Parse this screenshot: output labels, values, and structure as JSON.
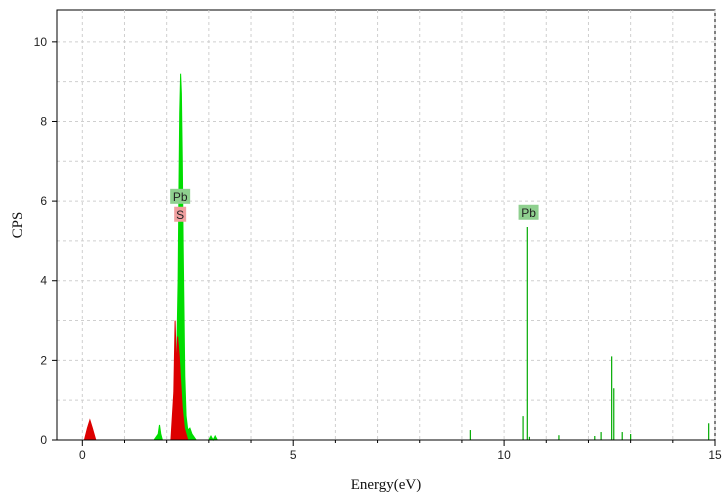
{
  "chart_data": {
    "type": "area",
    "title": "",
    "xlabel": "Energy(eV)",
    "ylabel": "CPS",
    "xlim": [
      -0.6,
      15
    ],
    "ylim": [
      0,
      10.8
    ],
    "x_ticks": [
      0,
      5,
      10,
      15
    ],
    "y_ticks": [
      0,
      2,
      4,
      6,
      8,
      10
    ],
    "x_tick_labels": [
      "0",
      "5",
      "10",
      "15"
    ],
    "y_tick_labels": [
      "0",
      "2",
      "4",
      "6",
      "8",
      "10"
    ],
    "grid": true,
    "series": [
      {
        "color": "#00dd00",
        "points": [
          [
            1.7,
            0
          ],
          [
            1.8,
            0.15
          ],
          [
            1.83,
            0.38
          ],
          [
            1.86,
            0.15
          ],
          [
            1.9,
            0
          ],
          [
            2.15,
            0
          ],
          [
            2.2,
            0.6
          ],
          [
            2.24,
            2.2
          ],
          [
            2.27,
            4.0
          ],
          [
            2.29,
            6.2
          ],
          [
            2.31,
            8.2
          ],
          [
            2.33,
            9.2
          ],
          [
            2.35,
            8.7
          ],
          [
            2.37,
            7.0
          ],
          [
            2.39,
            5.0
          ],
          [
            2.41,
            3.2
          ],
          [
            2.43,
            1.6
          ],
          [
            2.46,
            0.6
          ],
          [
            2.5,
            0.25
          ],
          [
            2.55,
            0.3
          ],
          [
            2.6,
            0.15
          ],
          [
            2.7,
            0
          ],
          [
            3.0,
            0
          ],
          [
            3.05,
            0.1
          ],
          [
            3.1,
            0
          ],
          [
            3.15,
            0.1
          ],
          [
            3.2,
            0
          ]
        ]
      },
      {
        "color": "#dd0000",
        "points": [
          [
            0.05,
            0
          ],
          [
            0.12,
            0.3
          ],
          [
            0.18,
            0.5
          ],
          [
            0.24,
            0.3
          ],
          [
            0.32,
            0
          ],
          [
            2.1,
            0
          ],
          [
            2.17,
            1.2
          ],
          [
            2.2,
            3.0
          ],
          [
            2.23,
            1.8
          ],
          [
            2.26,
            2.6
          ],
          [
            2.3,
            2.1
          ],
          [
            2.33,
            1.5
          ],
          [
            2.37,
            0.8
          ],
          [
            2.42,
            0.3
          ],
          [
            2.5,
            0
          ]
        ]
      }
    ],
    "spikes": [
      [
        9.2,
        0.25
      ],
      [
        10.45,
        0.6
      ],
      [
        10.55,
        5.35
      ],
      [
        10.6,
        0.08
      ],
      [
        11.3,
        0.12
      ],
      [
        12.15,
        0.1
      ],
      [
        12.3,
        0.2
      ],
      [
        12.55,
        2.1
      ],
      [
        12.6,
        1.3
      ],
      [
        12.8,
        0.2
      ],
      [
        13.0,
        0.15
      ],
      [
        14.85,
        0.42
      ]
    ],
    "spike_color": "#00aa00",
    "annotations": [
      {
        "text": "Pb",
        "x": 2.32,
        "y": 6.12,
        "color": "#8fd08f"
      },
      {
        "text": "S",
        "x": 2.32,
        "y": 5.67,
        "color": "#f0a0a0"
      },
      {
        "text": "Pb",
        "x": 10.58,
        "y": 5.72,
        "color": "#8fd08f"
      }
    ]
  }
}
